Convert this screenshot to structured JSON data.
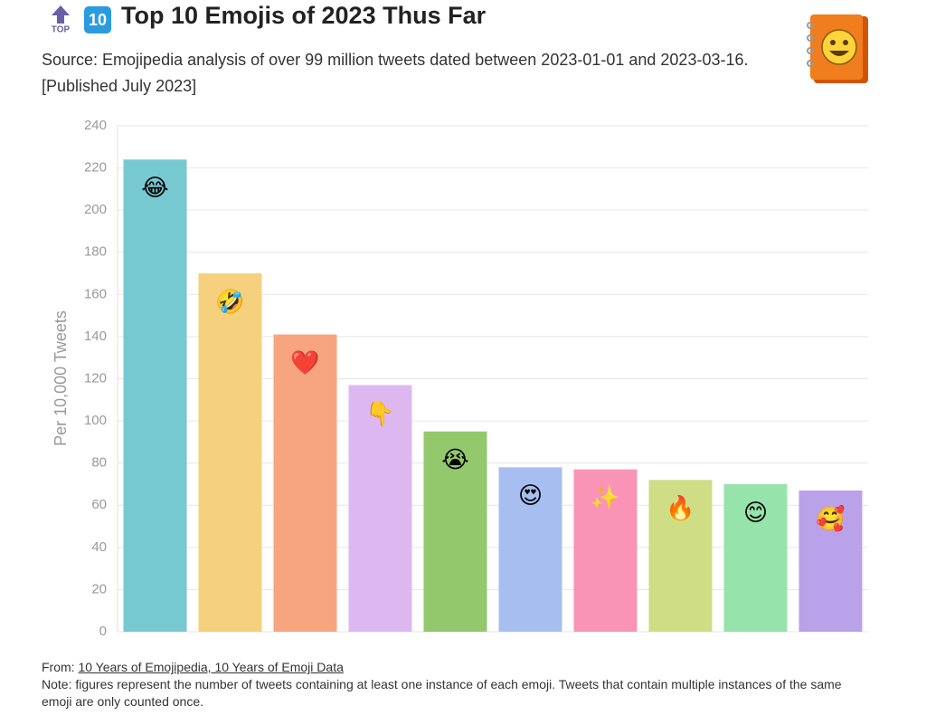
{
  "top_badge": "TOP",
  "rank_badge": "10",
  "chart_data": {
    "type": "bar",
    "title": "Top 10 Emojis of 2023 Thus Far",
    "subtitle": "Source: Emojipedia analysis of over 99 million tweets dated between 2023-01-01 and 2023-03-16.",
    "published": "[Published July 2023]",
    "y_label": "Per 10,000 Tweets",
    "categories": [
      "😂",
      "🤣",
      "❤️",
      "👇",
      "😭",
      "😍",
      "✨",
      "🔥",
      "😊",
      "🥰"
    ],
    "values": [
      224,
      170,
      141,
      117,
      95,
      78,
      77,
      72,
      70,
      67
    ],
    "colors": [
      "#76c9d1",
      "#f5d17e",
      "#f6a57f",
      "#ddb8f0",
      "#93c86d",
      "#a7bff0",
      "#f994b7",
      "#cfdd84",
      "#96e3ab",
      "#b9a2ea"
    ],
    "ylim": [
      0,
      240
    ],
    "yticks": [
      0,
      20,
      40,
      60,
      80,
      100,
      120,
      140,
      160,
      180,
      200,
      220,
      240
    ],
    "grid": true
  },
  "footer": {
    "from": "From:",
    "link": "10 Years of Emojipedia, 10 Years of Emoji Data",
    "note": "Note: figures represent the number of tweets containing at least one instance of each emoji. Tweets that contain multiple instances of the same emoji are only counted once."
  }
}
